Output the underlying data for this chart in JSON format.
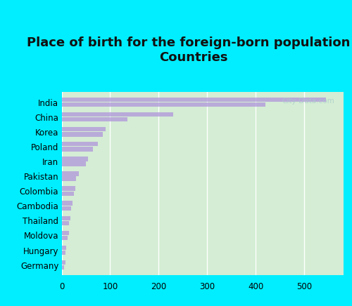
{
  "title": "Place of birth for the foreign-born population -\nCountries",
  "countries": [
    "India",
    "China",
    "Korea",
    "Poland",
    "Iran",
    "Pakistan",
    "Colombia",
    "Cambodia",
    "Thailand",
    "Moldova",
    "Hungary",
    "Germany"
  ],
  "bar1_values": [
    545,
    230,
    90,
    75,
    55,
    35,
    28,
    22,
    18,
    15,
    10,
    8
  ],
  "bar2_values": [
    420,
    135,
    85,
    65,
    50,
    30,
    25,
    20,
    15,
    12,
    8,
    5
  ],
  "bar_color": "#b39ddb",
  "plot_bg_top": "#d4edd4",
  "plot_bg_bot": "#e8f5e9",
  "xlim": [
    0,
    580
  ],
  "xticks": [
    0,
    100,
    200,
    300,
    400,
    500
  ],
  "title_fontsize": 13,
  "tick_fontsize": 8.5,
  "watermark": "City-Data.com",
  "outer_bg": "#00eeff"
}
